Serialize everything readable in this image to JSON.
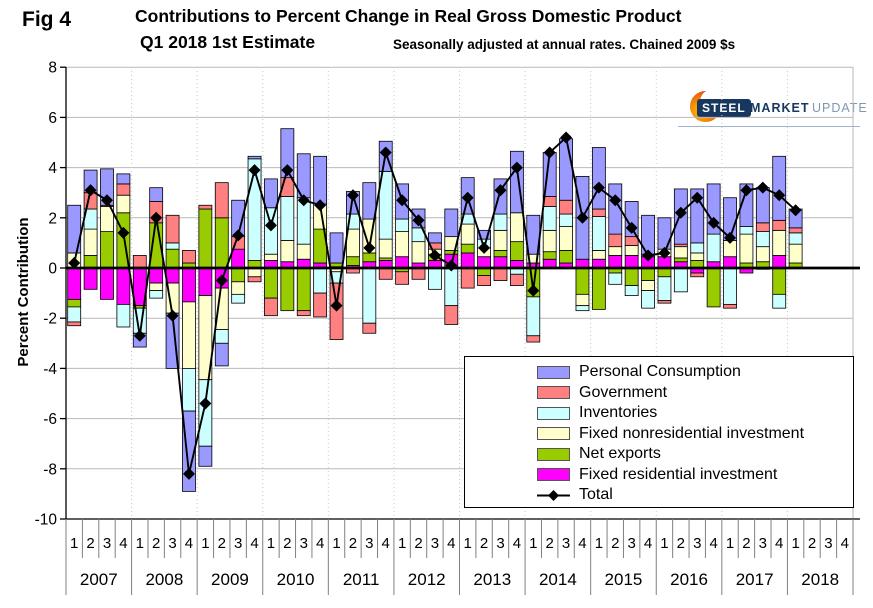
{
  "meta": {
    "fig_label": "Fig 4"
  },
  "header": {
    "title_line1": "Contributions to Percent Change in Real Gross Domestic Product",
    "title_line2": "Q1 2018 1st Estimate",
    "subtitle": "Seasonally adjusted at annual rates. Chained 2009 $s"
  },
  "logo": {
    "steel": "STEEL",
    "market": "MARKET",
    "update": "UPDATE"
  },
  "chart_data": {
    "type": "bar",
    "subtype": "stacked-bars-with-total-line",
    "title": "Contributions to Percent Change in Real Gross Domestic Product",
    "xlabel": "",
    "ylabel": "Percent Contribution",
    "ylim": [
      -10,
      8
    ],
    "ytick_step": 2,
    "ytick_labels": [
      "8",
      "6",
      "4",
      "2",
      "0",
      "-2",
      "-4",
      "-6",
      "-8",
      "-10"
    ],
    "grid": "horizontal solid, dotted vertical year separators",
    "legend_position": "inside lower right, boxed",
    "years": [
      "2007",
      "2008",
      "2009",
      "2010",
      "2011",
      "2012",
      "2013",
      "2014",
      "2015",
      "2016",
      "2017",
      "2018"
    ],
    "quarter_labels": [
      "1",
      "2",
      "3",
      "4"
    ],
    "num_quarters_plotted": 45,
    "draw_order": [
      "fixed_residential",
      "net_exports",
      "fixed_nonresidential",
      "inventories",
      "government",
      "personal_consumption"
    ],
    "series": [
      {
        "key": "personal_consumption",
        "name": "Personal Consumption",
        "color": "#9999FF",
        "values": [
          1.9,
          0.9,
          1.45,
          0.4,
          -0.55,
          0.55,
          -2.2,
          -3.2,
          -0.8,
          -0.9,
          1.45,
          0.1,
          1.15,
          1.95,
          1.75,
          1.9,
          1.2,
          0.9,
          1.45,
          1.2,
          1.4,
          0.75,
          0.4,
          1.1,
          1.45,
          0.35,
          1.4,
          2.45,
          1.55,
          1.75,
          2.45,
          3.3,
          2.45,
          2.0,
          1.4,
          1.55,
          1.25,
          2.2,
          2.15,
          2.0,
          1.7,
          1.7,
          1.4,
          2.55,
          0.75
        ]
      },
      {
        "key": "government",
        "name": "Government",
        "color": "#FF8080",
        "values": [
          -0.15,
          0.65,
          0.05,
          0.45,
          0.5,
          0.85,
          1.1,
          0.5,
          0.15,
          1.4,
          0.5,
          -0.2,
          -0.7,
          0.75,
          -0.2,
          -0.95,
          -2.25,
          -0.2,
          -0.4,
          -0.45,
          -0.5,
          -0.45,
          0.25,
          -0.75,
          -0.8,
          -0.4,
          -0.5,
          -0.45,
          -0.25,
          0.4,
          0.55,
          0.0,
          0.3,
          0.5,
          0.35,
          0.1,
          -0.1,
          0.1,
          -0.15,
          0.0,
          -0.15,
          0.0,
          0.35,
          0.4,
          0.2
        ]
      },
      {
        "key": "inventories",
        "name": "Inventories",
        "color": "#CCFFFF",
        "values": [
          -0.6,
          0.8,
          0.0,
          -0.9,
          -1.0,
          -0.3,
          0.25,
          -1.7,
          -2.65,
          -0.55,
          -0.35,
          4.05,
          1.85,
          1.75,
          1.85,
          -1.0,
          -0.45,
          0.6,
          -2.2,
          2.7,
          0.5,
          0.55,
          -0.85,
          -1.5,
          0.4,
          0.35,
          0.65,
          -0.25,
          -1.55,
          0.95,
          0.5,
          -0.2,
          1.35,
          -0.45,
          -0.4,
          -0.7,
          -0.95,
          -0.95,
          0.4,
          1.1,
          -1.45,
          0.3,
          0.6,
          -0.55,
          0.45
        ]
      },
      {
        "key": "fixed_nonresidential",
        "name": "Fixed nonresidential investment",
        "color": "#FFFFCC",
        "values": [
          0.6,
          1.05,
          1.0,
          0.7,
          0.0,
          -0.3,
          -1.2,
          -2.65,
          -3.35,
          -1.65,
          -0.5,
          -0.35,
          0.25,
          0.85,
          0.6,
          1.0,
          -0.15,
          1.1,
          1.35,
          0.75,
          1.0,
          0.85,
          0.2,
          0.55,
          0.8,
          0.35,
          0.8,
          1.15,
          0.35,
          0.85,
          0.95,
          -0.45,
          0.35,
          0.35,
          0.4,
          -0.4,
          0.3,
          0.45,
          0.3,
          0.0,
          0.65,
          1.15,
          0.6,
          1.0,
          0.75
        ]
      },
      {
        "key": "net_exports",
        "name": "Net exports",
        "color": "#99CC00",
        "values": [
          -0.3,
          0.5,
          1.45,
          2.2,
          -0.1,
          1.8,
          0.75,
          0.2,
          2.35,
          2.0,
          -0.55,
          0.3,
          -1.2,
          -1.7,
          -1.7,
          1.35,
          0.15,
          0.35,
          0.35,
          0.1,
          -0.15,
          0.0,
          0.25,
          0.15,
          0.35,
          -0.3,
          0.25,
          0.75,
          -1.15,
          0.3,
          0.5,
          -1.05,
          -1.65,
          -0.2,
          -0.7,
          -0.5,
          -0.35,
          0.15,
          0.3,
          -1.55,
          0.0,
          0.2,
          0.25,
          -1.05,
          0.2
        ]
      },
      {
        "key": "fixed_residential",
        "name": "Fixed residential investment",
        "color": "#FF00FF",
        "values": [
          -1.25,
          -0.85,
          -1.25,
          -1.45,
          -1.5,
          -0.6,
          -0.6,
          -1.35,
          -1.1,
          -0.8,
          0.75,
          0.0,
          0.3,
          0.25,
          0.35,
          0.2,
          0.05,
          0.1,
          0.25,
          0.3,
          0.45,
          0.2,
          0.3,
          0.55,
          0.6,
          0.45,
          0.45,
          0.3,
          0.2,
          0.35,
          0.2,
          0.35,
          0.35,
          0.5,
          0.5,
          0.45,
          0.45,
          0.25,
          -0.2,
          0.25,
          0.45,
          -0.2,
          -0.05,
          0.5,
          0.0
        ]
      }
    ],
    "total": {
      "key": "total",
      "name": "Total",
      "color": "#000000",
      "marker": "diamond",
      "values": [
        0.2,
        3.1,
        2.7,
        1.4,
        -2.7,
        2.0,
        -1.9,
        -8.2,
        -5.4,
        -0.5,
        1.3,
        3.9,
        1.7,
        3.9,
        2.7,
        2.5,
        -1.5,
        2.9,
        0.8,
        4.6,
        2.7,
        1.9,
        0.5,
        0.1,
        2.8,
        0.8,
        3.1,
        4.0,
        -0.9,
        4.6,
        5.2,
        2.0,
        3.2,
        2.7,
        1.6,
        0.5,
        0.6,
        2.2,
        2.8,
        1.8,
        1.2,
        3.1,
        3.2,
        2.9,
        2.3
      ]
    },
    "colors": {
      "gridline": "#b9b9b9",
      "year_separator": "#c9c9c9",
      "axis": "#000000",
      "zero_line": "#000000",
      "tick": "#808080"
    }
  }
}
